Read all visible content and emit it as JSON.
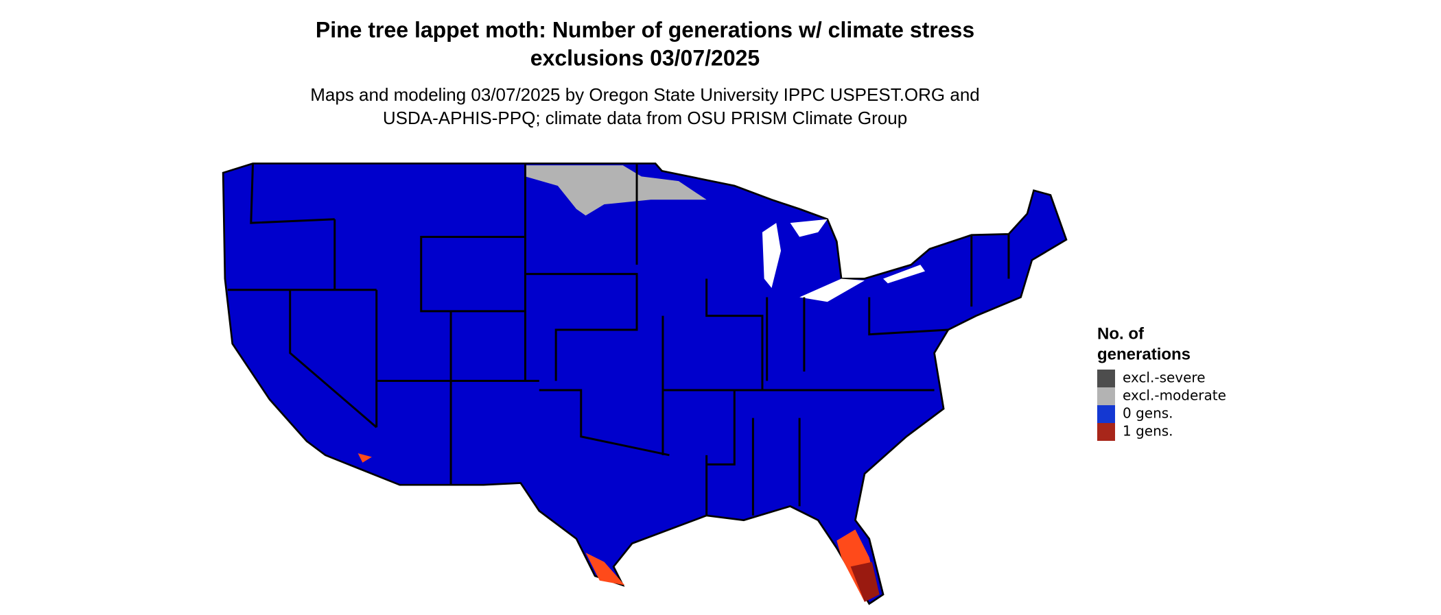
{
  "title": [
    "Pine tree lappet moth: Number of generations w/ climate stress",
    "exclusions 03/07/2025"
  ],
  "subtitle": [
    "Maps and modeling 03/07/2025 by Oregon State University IPPC USPEST.ORG and",
    "USDA-APHIS-PPQ; climate data from OSU PRISM Climate Group"
  ],
  "legend": {
    "title": [
      "No. of",
      "generations"
    ],
    "items": [
      {
        "label": "excl.-severe",
        "color": "#4d4d4d"
      },
      {
        "label": "excl.-moderate",
        "color": "#b3b3b3"
      },
      {
        "label": "0 gens.",
        "color": "#1438d2"
      },
      {
        "label": "1 gens.",
        "color": "#a8261a"
      }
    ]
  }
}
